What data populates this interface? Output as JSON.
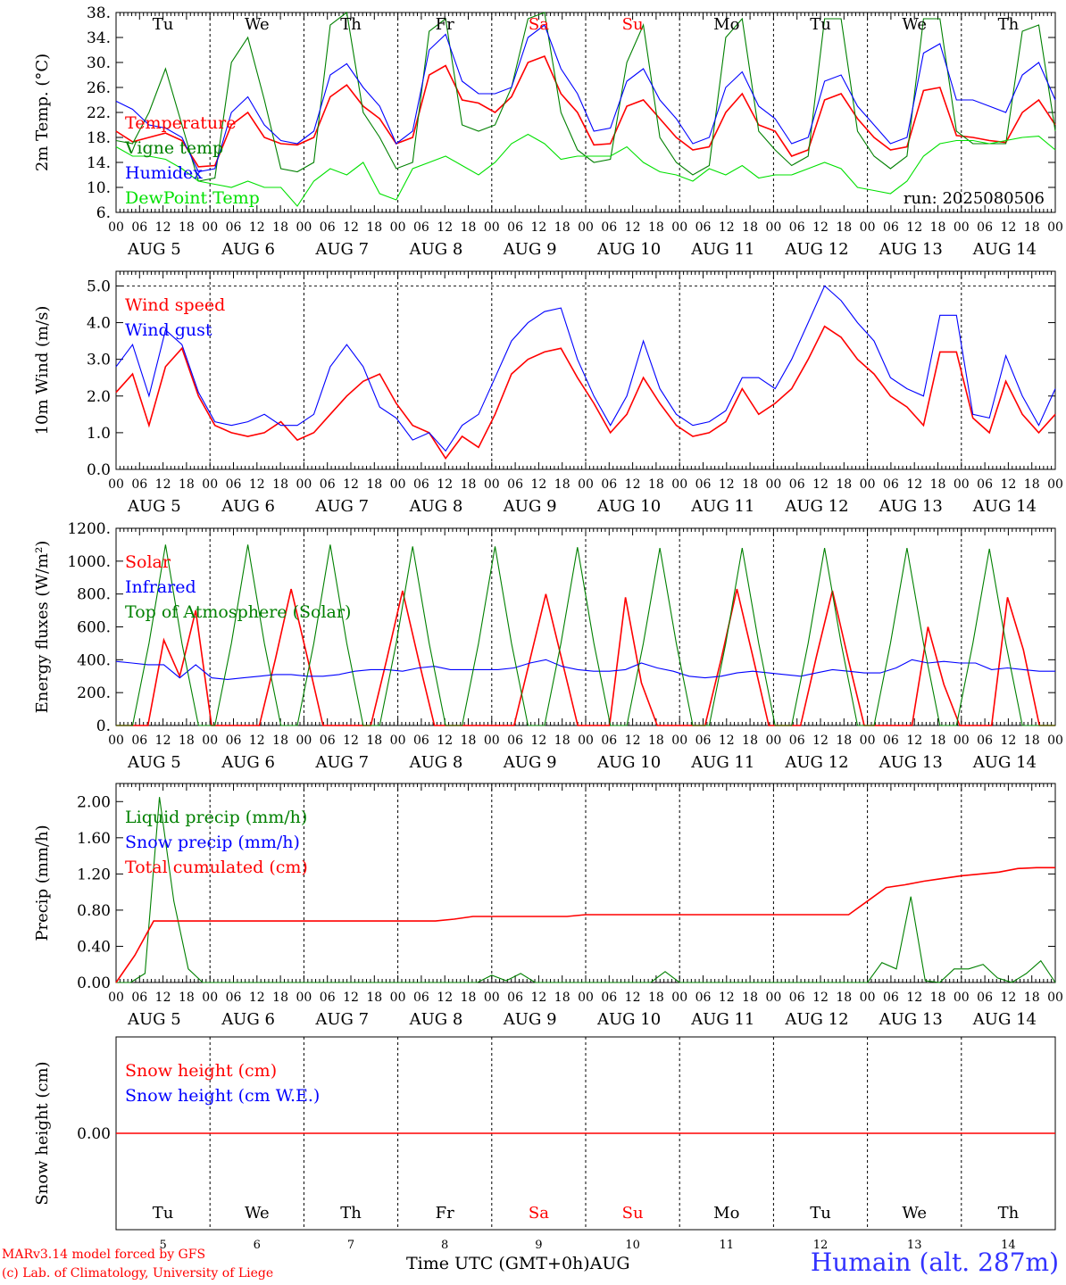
{
  "run_label": "run: 2025080506",
  "footer": {
    "model": "MARv3.14 model forced by GFS",
    "credit": "(c) Lab. of Climatology, University of Liege",
    "xlabel": "Time UTC (GMT+0h)",
    "month": "AUG",
    "station": "Humain (alt. 287m)"
  },
  "colors": {
    "red": "#ff0000",
    "blue": "#0000ff",
    "green": "#008000",
    "lightgreen": "#00e000",
    "station": "#3333ff"
  },
  "chart_data": [
    {
      "type": "line",
      "ylabel": "2m Temp. (°C)",
      "ylim": [
        6,
        38
      ],
      "yticks": [
        "6.",
        "10.",
        "14.",
        "18.",
        "22.",
        "26.",
        "30.",
        "34.",
        "38."
      ],
      "x_start": "2025-08-05 00 UTC",
      "x_step_hours": 6,
      "day_labels": [
        "Tu",
        "We",
        "Th",
        "Fr",
        "Sa",
        "Su",
        "Mo",
        "Tu",
        "We",
        "Th"
      ],
      "weekend_days": [
        4,
        5
      ],
      "date_labels": [
        "AUG  5",
        "AUG  6",
        "AUG  7",
        "AUG  8",
        "AUG  9",
        "AUG 10",
        "AUG 11",
        "AUG 12",
        "AUG 13",
        "AUG 14"
      ],
      "hour_labels": [
        "00",
        "06",
        "12",
        "18"
      ],
      "series": [
        {
          "name": "Temperature",
          "color": "red",
          "values": [
            19.0,
            17.3,
            18.0,
            18.7,
            17.5,
            13.3,
            13.5,
            20.0,
            22.0,
            18.0,
            17.0,
            16.8,
            18.0,
            24.5,
            26.4,
            23.0,
            21.0,
            17.0,
            18.0,
            28.0,
            29.5,
            24.0,
            23.5,
            22.0,
            24.5,
            30.0,
            31.0,
            25.0,
            22.0,
            16.8,
            17.0,
            23.0,
            24.0,
            21.0,
            18.0,
            16.0,
            16.5,
            22.0,
            25.0,
            20.0,
            19.0,
            15.0,
            16.0,
            24.0,
            25.0,
            21.0,
            18.0,
            16.0,
            16.5,
            25.5,
            26.0,
            18.3,
            18.0,
            17.5,
            17.2,
            22.0,
            24.0,
            20.0
          ]
        },
        {
          "name": "Vigne temp",
          "color": "green",
          "values": [
            17.5,
            17.0,
            22.0,
            29.0,
            20.0,
            11.0,
            11.5,
            30.0,
            34.0,
            24.0,
            13.0,
            12.5,
            14.0,
            36.0,
            38.0,
            22.0,
            18.0,
            13.0,
            14.0,
            35.0,
            37.0,
            20.0,
            19.0,
            20.0,
            26.0,
            37.0,
            38.0,
            22.0,
            16.0,
            14.0,
            14.5,
            30.0,
            36.0,
            18.0,
            14.0,
            12.0,
            13.5,
            34.0,
            37.0,
            19.0,
            16.0,
            13.5,
            15.0,
            37.0,
            37.0,
            19.0,
            15.0,
            13.0,
            15.0,
            37.0,
            37.0,
            19.0,
            17.0,
            17.0,
            17.0,
            35.0,
            36.0,
            19.0
          ]
        },
        {
          "name": "Humidex",
          "color": "blue",
          "values": [
            23.8,
            22.5,
            20.0,
            19.5,
            18.0,
            12.5,
            13.0,
            22.0,
            24.5,
            20.0,
            17.5,
            17.0,
            19.0,
            28.0,
            29.8,
            26.0,
            23.0,
            17.0,
            19.0,
            32.0,
            34.5,
            27.0,
            25.0,
            25.0,
            26.0,
            34.0,
            36.0,
            29.0,
            25.0,
            19.0,
            19.5,
            27.0,
            29.0,
            24.0,
            21.0,
            17.0,
            18.0,
            26.0,
            28.5,
            23.0,
            21.0,
            17.0,
            18.0,
            27.0,
            28.0,
            23.0,
            20.0,
            17.0,
            18.0,
            31.5,
            33.0,
            24.0,
            24.0,
            23.0,
            22.0,
            28.0,
            30.0,
            24.0
          ]
        },
        {
          "name": "DewPoint Temp",
          "color": "lightgreen",
          "values": [
            16.5,
            15.0,
            15.0,
            14.5,
            13.0,
            11.0,
            10.5,
            10.0,
            11.0,
            10.0,
            10.0,
            7.0,
            11.0,
            13.0,
            12.0,
            14.0,
            9.0,
            8.0,
            13.0,
            14.0,
            15.0,
            13.5,
            12.0,
            14.0,
            17.0,
            18.5,
            17.0,
            14.5,
            15.0,
            15.0,
            15.0,
            16.5,
            14.0,
            12.5,
            12.0,
            11.0,
            13.0,
            12.0,
            13.5,
            11.5,
            12.0,
            12.0,
            13.0,
            14.0,
            13.0,
            10.0,
            9.5,
            9.0,
            11.0,
            15.0,
            17.0,
            17.5,
            17.5,
            17.0,
            17.5,
            18.0,
            18.2,
            16.0
          ]
        }
      ],
      "legend_placement": "left",
      "grid": "vertical dashed at 00 UTC"
    },
    {
      "type": "line",
      "ylabel": "10m Wind (m/s)",
      "ylim": [
        0,
        5.4
      ],
      "yticks": [
        "0.0",
        "1.0",
        "2.0",
        "3.0",
        "4.0",
        "5.0"
      ],
      "reference_line": 5.0,
      "series": [
        {
          "name": "Wind speed",
          "color": "red",
          "values": [
            2.1,
            2.6,
            1.2,
            2.8,
            3.3,
            2.0,
            1.2,
            1.0,
            0.9,
            1.0,
            1.3,
            0.8,
            1.0,
            1.5,
            2.0,
            2.4,
            2.6,
            1.8,
            1.2,
            1.0,
            0.3,
            0.9,
            0.6,
            1.5,
            2.6,
            3.0,
            3.2,
            3.3,
            2.5,
            1.8,
            1.0,
            1.5,
            2.5,
            1.8,
            1.2,
            0.9,
            1.0,
            1.3,
            2.2,
            1.5,
            1.8,
            2.2,
            3.0,
            3.9,
            3.6,
            3.0,
            2.6,
            2.0,
            1.7,
            1.2,
            3.2,
            3.2,
            1.4,
            1.0,
            2.4,
            1.5,
            1.0,
            1.5
          ]
        },
        {
          "name": "Wind gust",
          "color": "blue",
          "values": [
            2.8,
            3.4,
            2.0,
            3.8,
            3.4,
            2.1,
            1.3,
            1.2,
            1.3,
            1.5,
            1.2,
            1.2,
            1.5,
            2.8,
            3.4,
            2.8,
            1.7,
            1.4,
            0.8,
            1.0,
            0.5,
            1.2,
            1.5,
            2.5,
            3.5,
            4.0,
            4.3,
            4.4,
            3.0,
            2.0,
            1.2,
            2.0,
            3.5,
            2.2,
            1.5,
            1.2,
            1.3,
            1.6,
            2.5,
            2.5,
            2.2,
            3.0,
            4.0,
            5.0,
            4.6,
            4.0,
            3.5,
            2.5,
            2.2,
            2.0,
            4.2,
            4.2,
            1.5,
            1.4,
            3.1,
            2.0,
            1.2,
            2.2
          ]
        }
      ],
      "legend_placement": "upper-left"
    },
    {
      "type": "line",
      "ylabel": "Energy fluxes (W/m²)",
      "ylim": [
        0,
        1200
      ],
      "yticks": [
        "0.",
        "200.",
        "400.",
        "600.",
        "800.",
        "1000.",
        "1200."
      ],
      "series": [
        {
          "name": "Solar",
          "color": "red",
          "values": [
            0,
            0,
            0,
            520,
            300,
            700,
            0,
            0,
            0,
            0,
            400,
            830,
            420,
            0,
            0,
            0,
            0,
            400,
            820,
            400,
            0,
            0,
            0,
            0,
            0,
            0,
            400,
            800,
            400,
            0,
            0,
            0,
            780,
            260,
            0,
            0,
            0,
            0,
            400,
            830,
            420,
            0,
            0,
            0,
            420,
            820,
            400,
            0,
            0,
            0,
            0,
            600,
            250,
            0,
            0,
            0,
            780,
            460,
            0,
            0
          ]
        },
        {
          "name": "Infrared",
          "color": "blue",
          "values": [
            390,
            380,
            370,
            370,
            290,
            370,
            290,
            280,
            290,
            300,
            310,
            310,
            300,
            300,
            310,
            330,
            340,
            340,
            330,
            350,
            360,
            340,
            340,
            340,
            340,
            350,
            380,
            400,
            360,
            340,
            330,
            330,
            340,
            380,
            350,
            330,
            300,
            290,
            300,
            320,
            330,
            320,
            310,
            300,
            320,
            340,
            330,
            320,
            320,
            350,
            400,
            380,
            390,
            380,
            380,
            340,
            350,
            340,
            330,
            330
          ]
        },
        {
          "name": "Top of Atmosphere (Solar)",
          "color": "green",
          "values": [
            0,
            0,
            500,
            1100,
            500,
            0,
            0,
            500,
            1100,
            500,
            0,
            0,
            500,
            1100,
            500,
            0,
            0,
            500,
            1090,
            500,
            0,
            0,
            500,
            1090,
            500,
            0,
            0,
            500,
            1085,
            500,
            0,
            0,
            500,
            1080,
            500,
            0,
            0,
            500,
            1080,
            500,
            0,
            0,
            500,
            1080,
            500,
            0,
            0,
            500,
            1080,
            500,
            0,
            0,
            500,
            1075,
            500,
            0,
            0,
            0
          ]
        }
      ],
      "legend_placement": "upper-left"
    },
    {
      "type": "line",
      "ylabel": "Precip (mm/h)",
      "ylim": [
        0,
        2.2
      ],
      "yticks": [
        "0.00",
        "0.40",
        "0.80",
        "1.20",
        "1.60",
        "2.00"
      ],
      "series": [
        {
          "name": "Liquid precip (mm/h)",
          "color": "green",
          "values": [
            0,
            0,
            0.1,
            2.05,
            0.9,
            0.15,
            0,
            0,
            0,
            0,
            0,
            0,
            0,
            0,
            0,
            0,
            0,
            0,
            0,
            0,
            0,
            0,
            0,
            0,
            0,
            0,
            0.08,
            0.02,
            0.1,
            0,
            0,
            0,
            0,
            0,
            0,
            0,
            0,
            0,
            0.12,
            0,
            0,
            0,
            0,
            0,
            0,
            0,
            0,
            0,
            0,
            0,
            0,
            0,
            0,
            0.22,
            0.15,
            0.95,
            0.02,
            0,
            0.15,
            0.15,
            0.2,
            0.05,
            0,
            0.1,
            0.24,
            0
          ]
        },
        {
          "name": "Snow precip (mm/h)",
          "color": "blue",
          "values": []
        },
        {
          "name": "Total cumulated (cm)",
          "color": "red",
          "values": [
            0,
            0.3,
            0.68,
            0.68,
            0.68,
            0.68,
            0.68,
            0.68,
            0.68,
            0.68,
            0.68,
            0.68,
            0.68,
            0.68,
            0.68,
            0.68,
            0.68,
            0.68,
            0.7,
            0.73,
            0.73,
            0.73,
            0.73,
            0.73,
            0.73,
            0.75,
            0.75,
            0.75,
            0.75,
            0.75,
            0.75,
            0.75,
            0.75,
            0.75,
            0.75,
            0.75,
            0.75,
            0.75,
            0.75,
            0.75,
            0.9,
            1.05,
            1.08,
            1.12,
            1.15,
            1.18,
            1.2,
            1.22,
            1.26,
            1.27,
            1.27
          ]
        }
      ],
      "legend_placement": "upper-left"
    },
    {
      "type": "line",
      "ylabel": "Snow height (cm)",
      "yticks": [
        "0.00"
      ],
      "series": [
        {
          "name": "Snow height (cm)",
          "color": "red",
          "values": [
            0,
            0
          ]
        },
        {
          "name": "Snow height (cm W.E.)",
          "color": "blue",
          "values": []
        }
      ],
      "bottom_day_numbers": [
        "5",
        "6",
        "7",
        "8",
        "9",
        "10",
        "11",
        "12",
        "13",
        "14"
      ],
      "legend_placement": "upper-left"
    }
  ]
}
